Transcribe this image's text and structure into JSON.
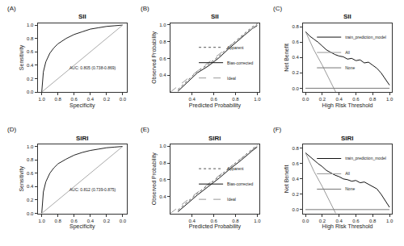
{
  "chart_data": [
    {
      "type": "line",
      "label": "(A)",
      "title": "SII",
      "x_label": "Specificity",
      "y_label": "Sensitivity",
      "xlim": [
        1.05,
        -0.05
      ],
      "ylim": [
        0,
        1.03
      ],
      "xticks": [
        {
          "value": 1,
          "label": "1.0"
        },
        0.8,
        0.6,
        0.4,
        0.2,
        {
          "value": 0,
          "label": "0.0"
        }
      ],
      "yticks": [
        {
          "value": 0,
          "label": "0.0"
        },
        0.2,
        0.4,
        0.6,
        0.8,
        {
          "value": 1,
          "label": "1.0"
        }
      ],
      "annotations": [
        "AUC: 0.805 (0.738-0.869)"
      ],
      "legend": "none",
      "grid": false,
      "series": [
        {
          "color": "#222222",
          "line_style": "solid",
          "x": [
            1,
            0.99,
            0.98,
            0.95,
            0.9,
            0.85,
            0.8,
            0.7,
            0.6,
            0.5,
            0.4,
            0.3,
            0.2,
            0.1,
            0
          ],
          "values": [
            0,
            0.18,
            0.3,
            0.45,
            0.58,
            0.66,
            0.72,
            0.8,
            0.86,
            0.9,
            0.94,
            0.96,
            0.98,
            0.99,
            1
          ]
        },
        {
          "color": "#aaaaaa",
          "line_style": "solid",
          "x": [
            1,
            0
          ],
          "values": [
            0,
            1
          ]
        }
      ]
    },
    {
      "type": "line",
      "label": "(B)",
      "title": "SII",
      "x_label": "Predicted Probability",
      "y_label": "Observed Probability",
      "xlim": [
        0.2,
        1.02
      ],
      "ylim": [
        0.2,
        1.02
      ],
      "xticks": [
        0.4,
        0.6,
        0.8,
        {
          "value": 1,
          "label": "1.0"
        }
      ],
      "yticks": [
        0.4,
        0.6,
        0.8,
        {
          "value": 1,
          "label": "1.0"
        }
      ],
      "legend": "bottom right",
      "grid": false,
      "series": [
        {
          "name": "Apparent",
          "color": "#555555",
          "line_style": "dotted",
          "x": [
            0.27,
            0.35,
            0.45,
            0.55,
            0.65,
            0.75,
            0.85,
            0.95,
            1.0
          ],
          "values": [
            0.23,
            0.33,
            0.45,
            0.53,
            0.63,
            0.75,
            0.86,
            0.97,
            1.01
          ]
        },
        {
          "name": "Bias-corrected",
          "color": "#111111",
          "line_style": "solid",
          "x": [
            0.27,
            0.35,
            0.45,
            0.55,
            0.65,
            0.75,
            0.85,
            0.95,
            1.0
          ],
          "values": [
            0.21,
            0.31,
            0.43,
            0.51,
            0.61,
            0.73,
            0.84,
            0.95,
            0.99
          ]
        },
        {
          "name": "Ideal",
          "color": "#999999",
          "line_style": "dashed",
          "x": [
            0.2,
            1.0
          ],
          "values": [
            0.2,
            1.0
          ]
        }
      ]
    },
    {
      "type": "line",
      "label": "(C)",
      "title": "SII",
      "x_label": "High Risk Threshold",
      "y_label": "Net Benefit",
      "xlim": [
        -0.03,
        1.03
      ],
      "ylim": [
        -0.05,
        0.85
      ],
      "xticks": [
        {
          "value": 0,
          "label": "0.0"
        },
        0.2,
        0.4,
        0.6,
        0.8,
        {
          "value": 1,
          "label": "1.0"
        }
      ],
      "yticks": [
        {
          "value": 0,
          "label": "0.0"
        },
        0.2,
        0.4,
        0.6,
        0.8
      ],
      "legend": "top right",
      "grid": false,
      "series": [
        {
          "name": "train_prediction_model",
          "color": "#111111",
          "line_style": "solid",
          "x": [
            0,
            0.05,
            0.1,
            0.15,
            0.2,
            0.25,
            0.3,
            0.35,
            0.4,
            0.45,
            0.5,
            0.55,
            0.6,
            0.65,
            0.7,
            0.75,
            0.8,
            0.85,
            0.9,
            0.95,
            1.0
          ],
          "values": [
            0.74,
            0.68,
            0.64,
            0.6,
            0.55,
            0.5,
            0.47,
            0.44,
            0.42,
            0.41,
            0.38,
            0.39,
            0.36,
            0.37,
            0.33,
            0.34,
            0.3,
            0.26,
            0.2,
            0.12,
            0.04
          ]
        },
        {
          "name": "All",
          "color": "#999999",
          "line_style": "solid",
          "x": [
            0,
            0.1,
            0.2,
            0.3,
            0.36
          ],
          "values": [
            0.74,
            0.5,
            0.3,
            0.08,
            -0.05
          ]
        },
        {
          "name": "None",
          "color": "#777777",
          "line_style": "solid",
          "x": [
            0,
            1
          ],
          "values": [
            0,
            0
          ]
        }
      ]
    },
    {
      "type": "line",
      "label": "(D)",
      "title": "SIRI",
      "x_label": "Specificity",
      "y_label": "Sensitivity",
      "xlim": [
        1.05,
        -0.05
      ],
      "ylim": [
        0,
        1.03
      ],
      "xticks": [
        {
          "value": 1,
          "label": "1.0"
        },
        0.8,
        0.6,
        0.4,
        0.2,
        {
          "value": 0,
          "label": "0.0"
        }
      ],
      "yticks": [
        {
          "value": 0,
          "label": "0.0"
        },
        0.2,
        0.4,
        0.6,
        0.8,
        {
          "value": 1,
          "label": "1.0"
        }
      ],
      "annotations": [
        "AUC: 0.812 (0.739-0.875)"
      ],
      "legend": "none",
      "grid": false,
      "series": [
        {
          "color": "#222222",
          "line_style": "solid",
          "x": [
            1,
            0.99,
            0.98,
            0.95,
            0.9,
            0.85,
            0.8,
            0.7,
            0.6,
            0.5,
            0.4,
            0.3,
            0.2,
            0.1,
            0
          ],
          "values": [
            0,
            0.2,
            0.32,
            0.47,
            0.6,
            0.68,
            0.74,
            0.81,
            0.87,
            0.91,
            0.94,
            0.96,
            0.98,
            0.99,
            1
          ]
        },
        {
          "color": "#aaaaaa",
          "line_style": "solid",
          "x": [
            1,
            0
          ],
          "values": [
            0,
            1
          ]
        }
      ]
    },
    {
      "type": "line",
      "label": "(E)",
      "title": "SIRI",
      "x_label": "Predicted Probability",
      "y_label": "Observed Probability",
      "xlim": [
        0.2,
        1.02
      ],
      "ylim": [
        0.2,
        1.02
      ],
      "xticks": [
        0.4,
        0.6,
        0.8,
        {
          "value": 1,
          "label": "1.0"
        }
      ],
      "yticks": [
        0.4,
        0.6,
        0.8,
        {
          "value": 1,
          "label": "1.0"
        }
      ],
      "legend": "bottom right",
      "grid": false,
      "series": [
        {
          "name": "Apparent",
          "color": "#555555",
          "line_style": "dotted",
          "x": [
            0.27,
            0.35,
            0.45,
            0.55,
            0.65,
            0.75,
            0.85,
            0.95,
            1.0
          ],
          "values": [
            0.24,
            0.33,
            0.44,
            0.54,
            0.64,
            0.75,
            0.85,
            0.96,
            1.01
          ]
        },
        {
          "name": "Bias-corrected",
          "color": "#111111",
          "line_style": "solid",
          "x": [
            0.27,
            0.35,
            0.45,
            0.55,
            0.65,
            0.75,
            0.85,
            0.95,
            1.0
          ],
          "values": [
            0.22,
            0.31,
            0.42,
            0.52,
            0.62,
            0.73,
            0.83,
            0.94,
            0.99
          ]
        },
        {
          "name": "Ideal",
          "color": "#999999",
          "line_style": "dashed",
          "x": [
            0.2,
            1.0
          ],
          "values": [
            0.2,
            1.0
          ]
        }
      ]
    },
    {
      "type": "line",
      "label": "(F)",
      "title": "SIRI",
      "x_label": "High Risk Threshold",
      "y_label": "Net Benefit",
      "xlim": [
        -0.03,
        1.03
      ],
      "ylim": [
        -0.05,
        0.85
      ],
      "xticks": [
        {
          "value": 0,
          "label": "0.0"
        },
        0.2,
        0.4,
        0.6,
        0.8,
        {
          "value": 1,
          "label": "1.0"
        }
      ],
      "yticks": [
        {
          "value": 0,
          "label": "0.0"
        },
        0.2,
        0.4,
        0.6,
        0.8
      ],
      "legend": "top right",
      "grid": false,
      "series": [
        {
          "name": "train_prediction_model",
          "color": "#111111",
          "line_style": "solid",
          "x": [
            0,
            0.05,
            0.1,
            0.15,
            0.2,
            0.25,
            0.3,
            0.35,
            0.4,
            0.45,
            0.5,
            0.55,
            0.6,
            0.65,
            0.7,
            0.75,
            0.8,
            0.85,
            0.9,
            0.95,
            1.0
          ],
          "values": [
            0.74,
            0.69,
            0.64,
            0.6,
            0.56,
            0.51,
            0.48,
            0.45,
            0.43,
            0.4,
            0.39,
            0.37,
            0.38,
            0.35,
            0.36,
            0.33,
            0.3,
            0.27,
            0.2,
            0.12,
            0.03
          ]
        },
        {
          "name": "All",
          "color": "#999999",
          "line_style": "solid",
          "x": [
            0,
            0.1,
            0.2,
            0.3,
            0.36
          ],
          "values": [
            0.74,
            0.5,
            0.3,
            0.08,
            -0.05
          ]
        },
        {
          "name": "None",
          "color": "#777777",
          "line_style": "solid",
          "x": [
            0,
            1
          ],
          "values": [
            0,
            0
          ]
        }
      ]
    }
  ]
}
